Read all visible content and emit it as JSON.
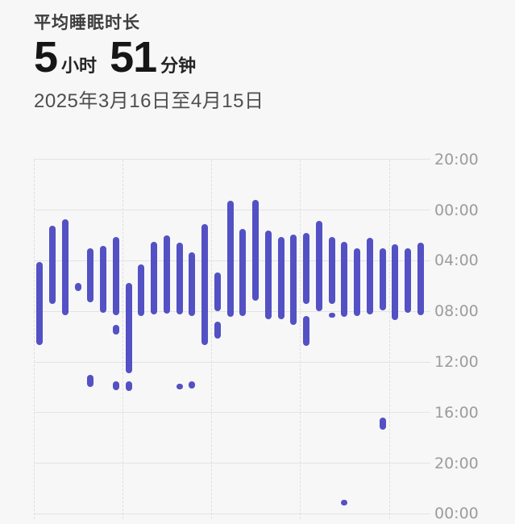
{
  "header": {
    "title": "平均睡眠时长",
    "value_hours": "5",
    "unit_hours": "小时",
    "value_minutes": "51",
    "unit_minutes": "分钟",
    "date_range": "2025年3月16日至4月15日"
  },
  "colors": {
    "background": "#f7f7f7",
    "bar": "#5351C4",
    "hgrid": "#e3e3e3",
    "vgrid": "#dfdfdf",
    "axis_label": "#9c9c9c"
  },
  "chart_data": {
    "type": "bar",
    "subtype": "daily-sleep-time-ranges",
    "title": "平均睡眠时长 5小时51分钟",
    "date_range": "2025-03-16 to 2025-04-15",
    "num_days": 31,
    "y_axis": {
      "side": "right",
      "origin": "20:00 of previous evening, increasing downward",
      "tick_labels": [
        "20:00",
        "00:00",
        "04:00",
        "08:00",
        "12:00",
        "16:00",
        "20:00",
        "00:00"
      ],
      "tick_hours": [
        0,
        4,
        8,
        12,
        16,
        20,
        24,
        28
      ],
      "grid": "solid horizontal lines at each tick"
    },
    "x_axis": {
      "tick_labels": [],
      "grid": "dashed vertical lines every 7 days",
      "week_gridline_days": [
        0,
        7,
        14,
        21,
        28
      ]
    },
    "days": [
      {
        "day": 1,
        "segments": [
          {
            "start": "04:05",
            "end": "10:40",
            "t": [
              8.1,
              14.65
            ]
          }
        ]
      },
      {
        "day": 2,
        "segments": [
          {
            "start": "01:15",
            "end": "07:25",
            "t": [
              5.23,
              11.4
            ]
          }
        ]
      },
      {
        "day": 3,
        "segments": [
          {
            "start": "00:45",
            "end": "08:20",
            "t": [
              4.75,
              12.3
            ]
          }
        ]
      },
      {
        "day": 4,
        "segments": [
          {
            "start": "05:45",
            "end": "06:25",
            "t": [
              9.78,
              10.42
            ]
          }
        ]
      },
      {
        "day": 5,
        "segments": [
          {
            "start": "03:00",
            "end": "07:20",
            "t": [
              7.0,
              11.3
            ]
          },
          {
            "start": "13:05",
            "end": "14:00",
            "t": [
              17.05,
              18.0
            ]
          }
        ]
      },
      {
        "day": 6,
        "segments": [
          {
            "start": "02:50",
            "end": "08:10",
            "t": [
              6.83,
              12.13
            ]
          }
        ]
      },
      {
        "day": 7,
        "segments": [
          {
            "start": "02:10",
            "end": "08:20",
            "t": [
              6.15,
              12.3
            ]
          },
          {
            "start": "09:05",
            "end": "09:50",
            "t": [
              13.1,
              13.85
            ]
          },
          {
            "start": "13:35",
            "end": "14:10",
            "t": [
              17.55,
              18.2
            ]
          }
        ]
      },
      {
        "day": 8,
        "segments": [
          {
            "start": "05:45",
            "end": "12:55",
            "t": [
              9.75,
              16.9
            ]
          },
          {
            "start": "13:35",
            "end": "14:20",
            "t": [
              17.55,
              18.3
            ]
          }
        ]
      },
      {
        "day": 9,
        "segments": [
          {
            "start": "04:20",
            "end": "08:25",
            "t": [
              8.32,
              12.4
            ]
          }
        ]
      },
      {
        "day": 10,
        "segments": [
          {
            "start": "02:30",
            "end": "08:15",
            "t": [
              6.5,
              12.25
            ]
          }
        ]
      },
      {
        "day": 11,
        "segments": [
          {
            "start": "02:00",
            "end": "08:10",
            "t": [
              6.0,
              12.15
            ]
          }
        ]
      },
      {
        "day": 12,
        "segments": [
          {
            "start": "02:35",
            "end": "08:15",
            "t": [
              6.6,
              12.25
            ]
          },
          {
            "start": "13:40",
            "end": "14:10",
            "t": [
              17.7,
              18.15
            ]
          }
        ]
      },
      {
        "day": 13,
        "segments": [
          {
            "start": "03:20",
            "end": "08:20",
            "t": [
              7.35,
              12.35
            ]
          },
          {
            "start": "13:30",
            "end": "14:05",
            "t": [
              17.5,
              18.1
            ]
          }
        ]
      },
      {
        "day": 14,
        "segments": [
          {
            "start": "01:05",
            "end": "10:40",
            "t": [
              5.08,
              14.65
            ]
          }
        ]
      },
      {
        "day": 15,
        "segments": [
          {
            "start": "04:55",
            "end": "08:00",
            "t": [
              8.9,
              12.0
            ]
          },
          {
            "start": "08:50",
            "end": "10:10",
            "t": [
              12.8,
              14.15
            ]
          }
        ]
      },
      {
        "day": 16,
        "segments": [
          {
            "start": "23:15",
            "end": "08:25",
            "t": [
              3.25,
              12.45
            ]
          }
        ]
      },
      {
        "day": 17,
        "segments": [
          {
            "start": "01:30",
            "end": "08:20",
            "t": [
              5.52,
              12.35
            ]
          }
        ]
      },
      {
        "day": 18,
        "segments": [
          {
            "start": "23:10",
            "end": "07:10",
            "t": [
              3.2,
              11.15
            ]
          }
        ]
      },
      {
        "day": 19,
        "segments": [
          {
            "start": "01:35",
            "end": "08:35",
            "t": [
              5.6,
              12.6
            ]
          }
        ]
      },
      {
        "day": 20,
        "segments": [
          {
            "start": "02:05",
            "end": "08:35",
            "t": [
              6.1,
              12.6
            ]
          }
        ]
      },
      {
        "day": 21,
        "segments": [
          {
            "start": "01:55",
            "end": "09:05",
            "t": [
              5.95,
              13.1
            ]
          }
        ]
      },
      {
        "day": 22,
        "segments": [
          {
            "start": "01:50",
            "end": "07:25",
            "t": [
              5.8,
              11.4
            ]
          },
          {
            "start": "08:20",
            "end": "10:45",
            "t": [
              12.35,
              14.75
            ]
          }
        ]
      },
      {
        "day": 23,
        "segments": [
          {
            "start": "00:50",
            "end": "08:00",
            "t": [
              4.85,
              12.0
            ]
          }
        ]
      },
      {
        "day": 24,
        "segments": [
          {
            "start": "02:05",
            "end": "07:25",
            "t": [
              6.1,
              11.4
            ]
          },
          {
            "start": "08:05",
            "end": "08:30",
            "t": [
              12.1,
              12.5
            ]
          }
        ]
      },
      {
        "day": 25,
        "segments": [
          {
            "start": "02:30",
            "end": "08:25",
            "t": [
              6.5,
              12.45
            ]
          },
          {
            "start": "22:55",
            "end": "23:20",
            "t": [
              26.9,
              27.35
            ]
          }
        ]
      },
      {
        "day": 26,
        "segments": [
          {
            "start": "03:00",
            "end": "08:20",
            "t": [
              7.0,
              12.35
            ]
          }
        ]
      },
      {
        "day": 27,
        "segments": [
          {
            "start": "02:10",
            "end": "08:15",
            "t": [
              6.2,
              12.25
            ]
          }
        ]
      },
      {
        "day": 28,
        "segments": [
          {
            "start": "03:00",
            "end": "07:55",
            "t": [
              7.0,
              11.95
            ]
          },
          {
            "start": "16:25",
            "end": "17:20",
            "t": [
              20.4,
              21.35
            ]
          }
        ]
      },
      {
        "day": 29,
        "segments": [
          {
            "start": "02:40",
            "end": "08:40",
            "t": [
              6.68,
              12.7
            ]
          }
        ]
      },
      {
        "day": 30,
        "segments": [
          {
            "start": "03:05",
            "end": "08:05",
            "t": [
              7.05,
              12.1
            ]
          }
        ]
      },
      {
        "day": 31,
        "segments": [
          {
            "start": "02:35",
            "end": "08:20",
            "t": [
              6.6,
              12.3
            ]
          }
        ]
      }
    ]
  }
}
